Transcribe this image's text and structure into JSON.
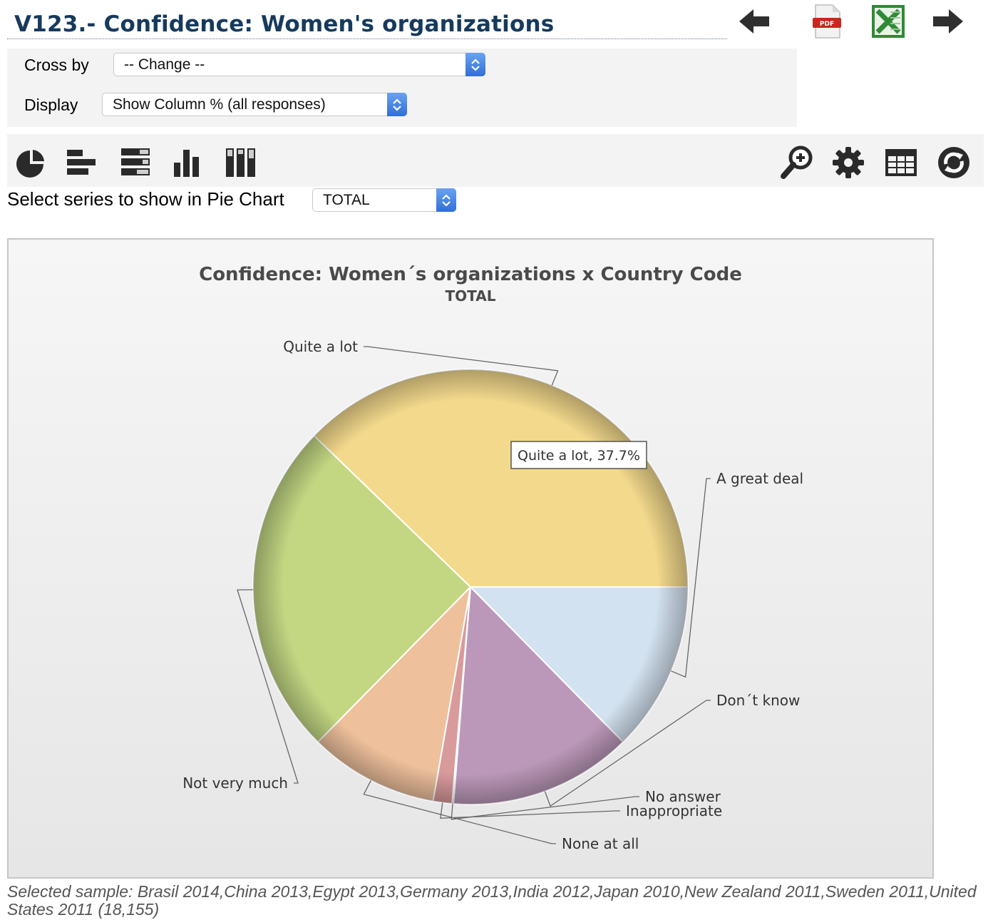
{
  "header": {
    "title": "V123.- Confidence: Women's organizations",
    "icons": [
      "back-arrow-icon",
      "pdf-icon",
      "excel-icon",
      "forward-arrow-icon"
    ],
    "pdf_text": "PDF"
  },
  "controls": {
    "cross_by_label": "Cross by",
    "cross_by_value": "-- Change --",
    "display_label": "Display",
    "display_value": "Show Column % (all responses)"
  },
  "toolbar": {
    "left_icons": [
      "pie-chart-icon",
      "bar-chart-icon",
      "stacked-bar-icon",
      "column-chart-icon",
      "stacked-column-icon"
    ],
    "right_icons": [
      "zoom-icon",
      "gear-icon",
      "table-icon",
      "refresh-icon"
    ]
  },
  "pie_select": {
    "label": "Select series to show in Pie Chart",
    "value": "TOTAL"
  },
  "chart_data": {
    "type": "pie",
    "title": "Confidence: Women´s organizations x Country Code",
    "subtitle": "TOTAL",
    "slices": [
      {
        "label": "A great deal",
        "value": 12.6,
        "color": "#d3e2f0"
      },
      {
        "label": "Don´t know",
        "value": 13.6,
        "color": "#bb98b9"
      },
      {
        "label": "No answer",
        "value": 0.1,
        "color": "#e9eed2"
      },
      {
        "label": "Inappropriate",
        "value": 1.4,
        "color": "#d99a9c"
      },
      {
        "label": "None at all",
        "value": 9.6,
        "color": "#eec09b"
      },
      {
        "label": "Not very much",
        "value": 24.8,
        "color": "#c3d783"
      },
      {
        "label": "Quite a lot",
        "value": 37.7,
        "color": "#f3d98c"
      }
    ],
    "tooltip": "Quite a lot, 37.7%"
  },
  "footer": {
    "sample_line1": "Selected sample: Brasil 2014,China 2013,Egypt 2013,Germany 2013,India 2012,Japan 2010,New Zealand 2011,Sweden 2011,United",
    "sample_line2": "States 2011 (18,155)"
  }
}
